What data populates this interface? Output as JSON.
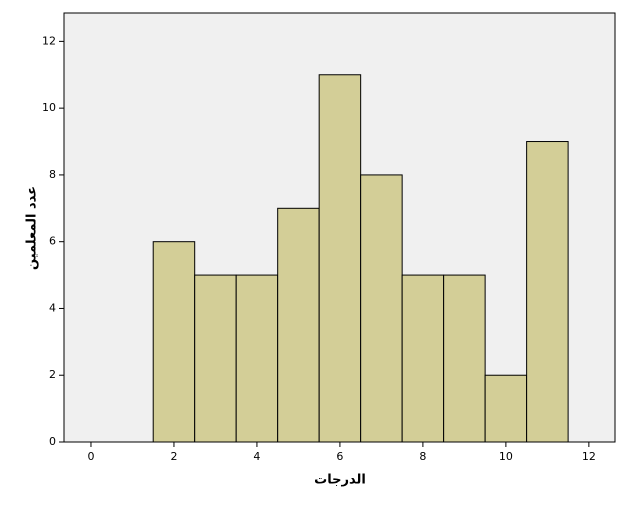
{
  "chart_data": {
    "type": "histogram",
    "x_label": "الدرجات",
    "y_label": "عدد المعلمين",
    "bins": [
      1.5,
      2.5,
      3.5,
      4.5,
      5.5,
      6.5,
      7.5,
      8.5,
      9.5,
      10.5,
      11.5
    ],
    "values": [
      6,
      5,
      5,
      7,
      11,
      8,
      5,
      5,
      2,
      9
    ],
    "color": "#d3ce97",
    "edge_color": "#000000",
    "background": "#f0f0f0",
    "xlim": [
      -0.65,
      12.63
    ],
    "ylim": [
      0,
      12.85
    ],
    "xticks": [
      0,
      2,
      4,
      6,
      8,
      10,
      12
    ],
    "yticks": [
      0,
      2,
      4,
      6,
      8,
      10,
      12
    ]
  }
}
